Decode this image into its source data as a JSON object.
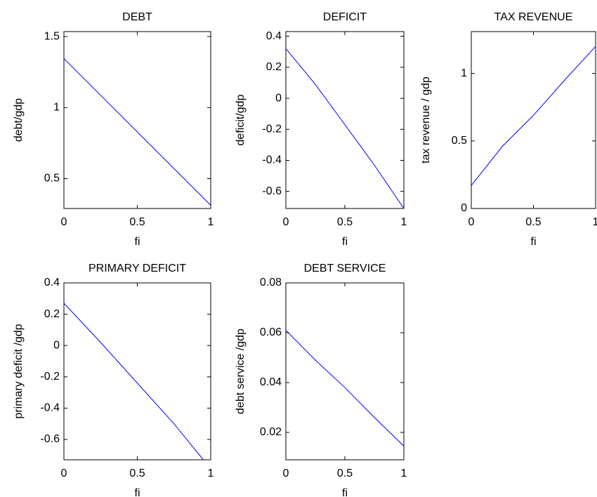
{
  "chart_data": [
    {
      "type": "line",
      "title": "DEBT",
      "xlabel": "fi",
      "ylabel": "debt/gdp",
      "x": [
        0,
        0.25,
        0.5,
        0.75,
        1
      ],
      "values": [
        1.345,
        1.087,
        0.829,
        0.571,
        0.313
      ],
      "color": "#0000ff",
      "xlim": [
        0,
        1
      ],
      "ylim": [
        0.29,
        1.535
      ],
      "xticks": [
        0,
        0.5,
        1
      ],
      "yticks": [
        0.5,
        1,
        1.5
      ]
    },
    {
      "type": "line",
      "title": "DEFICIT",
      "xlabel": "fi",
      "ylabel": "deficit/gdp",
      "x": [
        0,
        0.25,
        0.5,
        0.75,
        1
      ],
      "values": [
        0.32,
        0.09,
        -0.17,
        -0.43,
        -0.71
      ],
      "color": "#0000ff",
      "xlim": [
        0,
        1
      ],
      "ylim": [
        -0.71,
        0.43
      ],
      "xticks": [
        0,
        0.5,
        1
      ],
      "yticks": [
        -0.6,
        -0.4,
        -0.2,
        0,
        0.2,
        0.4
      ]
    },
    {
      "type": "line",
      "title": "TAX REVENUE",
      "xlabel": "fi",
      "ylabel": "tax revenue / gdp",
      "x": [
        0,
        0.25,
        0.5,
        0.75,
        1
      ],
      "values": [
        0.17,
        0.46,
        0.69,
        0.95,
        1.2
      ],
      "color": "#0000ff",
      "xlim": [
        0,
        1
      ],
      "ylim": [
        0,
        1.31
      ],
      "xticks": [
        0,
        0.5,
        1
      ],
      "yticks": [
        0,
        0.5,
        1
      ]
    },
    {
      "type": "line",
      "title": "PRIMARY DEFICIT",
      "xlabel": "fi",
      "ylabel": "primary deficit /gdp",
      "x": [
        0,
        0.25,
        0.5,
        0.75,
        0.95
      ],
      "values": [
        0.27,
        0.02,
        -0.24,
        -0.5,
        -0.73
      ],
      "color": "#0000ff",
      "xlim": [
        0,
        1
      ],
      "ylim": [
        -0.73,
        0.4
      ],
      "xticks": [
        0,
        0.5,
        1
      ],
      "yticks": [
        -0.6,
        -0.4,
        -0.2,
        0,
        0.2,
        0.4
      ]
    },
    {
      "type": "line",
      "title": "DEBT SERVICE",
      "xlabel": "fi",
      "ylabel": "debt service /gdp",
      "x": [
        0,
        0.25,
        0.5,
        0.75,
        1
      ],
      "values": [
        0.061,
        0.049,
        0.038,
        0.026,
        0.0145
      ],
      "color": "#0000ff",
      "xlim": [
        0,
        1
      ],
      "ylim": [
        0.009,
        0.08
      ],
      "xticks": [
        0,
        0.5,
        1
      ],
      "yticks": [
        0.02,
        0.04,
        0.06,
        0.08
      ]
    }
  ]
}
